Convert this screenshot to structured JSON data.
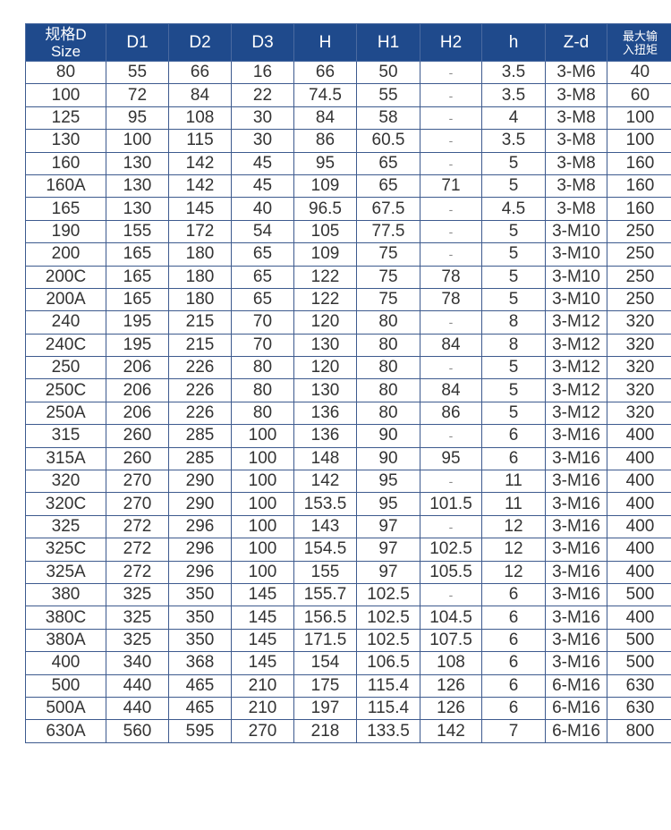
{
  "colors": {
    "header_bg": "#1f4a8c",
    "border": "#3d5a8e"
  },
  "headers": [
    "规格D\nSize",
    "D1",
    "D2",
    "D3",
    "H",
    "H1",
    "H2",
    "h",
    "Z-d",
    "最大输\n入扭矩"
  ],
  "header_lines": {
    "size_line1": "规格D",
    "size_line2": "Size",
    "torque_line1": "最大输",
    "torque_line2": "入扭矩"
  },
  "rows": [
    [
      "80",
      "55",
      "66",
      "16",
      "66",
      "50",
      "-",
      "3.5",
      "3-M6",
      "40"
    ],
    [
      "100",
      "72",
      "84",
      "22",
      "74.5",
      "55",
      "-",
      "3.5",
      "3-M8",
      "60"
    ],
    [
      "125",
      "95",
      "108",
      "30",
      "84",
      "58",
      "-",
      "4",
      "3-M8",
      "100"
    ],
    [
      "130",
      "100",
      "115",
      "30",
      "86",
      "60.5",
      "-",
      "3.5",
      "3-M8",
      "100"
    ],
    [
      "160",
      "130",
      "142",
      "45",
      "95",
      "65",
      "-",
      "5",
      "3-M8",
      "160"
    ],
    [
      "160A",
      "130",
      "142",
      "45",
      "109",
      "65",
      "71",
      "5",
      "3-M8",
      "160"
    ],
    [
      "165",
      "130",
      "145",
      "40",
      "96.5",
      "67.5",
      "-",
      "4.5",
      "3-M8",
      "160"
    ],
    [
      "190",
      "155",
      "172",
      "54",
      "105",
      "77.5",
      "-",
      "5",
      "3-M10",
      "250"
    ],
    [
      "200",
      "165",
      "180",
      "65",
      "109",
      "75",
      "-",
      "5",
      "3-M10",
      "250"
    ],
    [
      "200C",
      "165",
      "180",
      "65",
      "122",
      "75",
      "78",
      "5",
      "3-M10",
      "250"
    ],
    [
      "200A",
      "165",
      "180",
      "65",
      "122",
      "75",
      "78",
      "5",
      "3-M10",
      "250"
    ],
    [
      "240",
      "195",
      "215",
      "70",
      "120",
      "80",
      "-",
      "8",
      "3-M12",
      "320"
    ],
    [
      "240C",
      "195",
      "215",
      "70",
      "130",
      "80",
      "84",
      "8",
      "3-M12",
      "320"
    ],
    [
      "250",
      "206",
      "226",
      "80",
      "120",
      "80",
      "-",
      "5",
      "3-M12",
      "320"
    ],
    [
      "250C",
      "206",
      "226",
      "80",
      "130",
      "80",
      "84",
      "5",
      "3-M12",
      "320"
    ],
    [
      "250A",
      "206",
      "226",
      "80",
      "136",
      "80",
      "86",
      "5",
      "3-M12",
      "320"
    ],
    [
      "315",
      "260",
      "285",
      "100",
      "136",
      "90",
      "-",
      "6",
      "3-M16",
      "400"
    ],
    [
      "315A",
      "260",
      "285",
      "100",
      "148",
      "90",
      "95",
      "6",
      "3-M16",
      "400"
    ],
    [
      "320",
      "270",
      "290",
      "100",
      "142",
      "95",
      "-",
      "11",
      "3-M16",
      "400"
    ],
    [
      "320C",
      "270",
      "290",
      "100",
      "153.5",
      "95",
      "101.5",
      "11",
      "3-M16",
      "400"
    ],
    [
      "325",
      "272",
      "296",
      "100",
      "143",
      "97",
      "-",
      "12",
      "3-M16",
      "400"
    ],
    [
      "325C",
      "272",
      "296",
      "100",
      "154.5",
      "97",
      "102.5",
      "12",
      "3-M16",
      "400"
    ],
    [
      "325A",
      "272",
      "296",
      "100",
      "155",
      "97",
      "105.5",
      "12",
      "3-M16",
      "400"
    ],
    [
      "380",
      "325",
      "350",
      "145",
      "155.7",
      "102.5",
      "-",
      "6",
      "3-M16",
      "500"
    ],
    [
      "380C",
      "325",
      "350",
      "145",
      "156.5",
      "102.5",
      "104.5",
      "6",
      "3-M16",
      "400"
    ],
    [
      "380A",
      "325",
      "350",
      "145",
      "171.5",
      "102.5",
      "107.5",
      "6",
      "3-M16",
      "500"
    ],
    [
      "400",
      "340",
      "368",
      "145",
      "154",
      "106.5",
      "108",
      "6",
      "3-M16",
      "500"
    ],
    [
      "500",
      "440",
      "465",
      "210",
      "175",
      "115.4",
      "126",
      "6",
      "6-M16",
      "630"
    ],
    [
      "500A",
      "440",
      "465",
      "210",
      "197",
      "115.4",
      "126",
      "6",
      "6-M16",
      "630"
    ],
    [
      "630A",
      "560",
      "595",
      "270",
      "218",
      "133.5",
      "142",
      "7",
      "6-M16",
      "800"
    ]
  ]
}
